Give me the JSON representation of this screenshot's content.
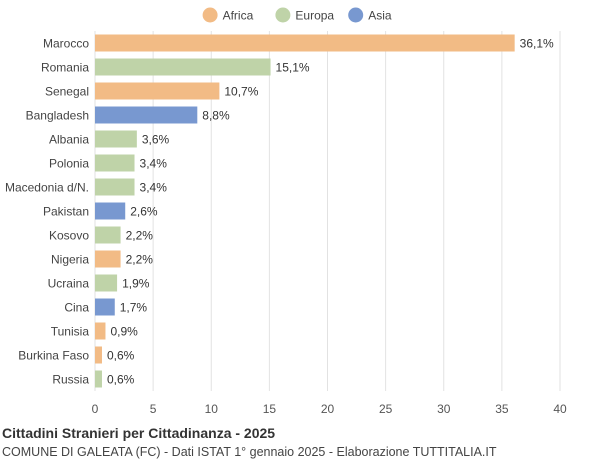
{
  "colors": {
    "Africa": "#f2bb85",
    "Europa": "#bfd3a8",
    "Asia": "#7898d0"
  },
  "legend": {
    "placement": "top-center",
    "items": [
      "Africa",
      "Europa",
      "Asia"
    ]
  },
  "chart_data": {
    "type": "bar",
    "orientation": "horizontal",
    "categories": [
      "Marocco",
      "Romania",
      "Senegal",
      "Bangladesh",
      "Albania",
      "Polonia",
      "Macedonia d/N.",
      "Pakistan",
      "Kosovo",
      "Nigeria",
      "Ucraina",
      "Cina",
      "Tunisia",
      "Burkina Faso",
      "Russia"
    ],
    "values": [
      36.1,
      15.1,
      10.7,
      8.8,
      3.6,
      3.4,
      3.4,
      2.6,
      2.2,
      2.2,
      1.9,
      1.7,
      0.9,
      0.6,
      0.6
    ],
    "value_labels": [
      "36,1%",
      "15,1%",
      "10,7%",
      "8,8%",
      "3,6%",
      "3,4%",
      "3,4%",
      "2,6%",
      "2,2%",
      "2,2%",
      "1,9%",
      "1,7%",
      "0,9%",
      "0,6%",
      "0,6%"
    ],
    "continent": [
      "Africa",
      "Europa",
      "Africa",
      "Asia",
      "Europa",
      "Europa",
      "Europa",
      "Asia",
      "Europa",
      "Africa",
      "Europa",
      "Asia",
      "Africa",
      "Africa",
      "Europa"
    ],
    "xlim": [
      0,
      40
    ],
    "xticks": [
      0,
      5,
      10,
      15,
      20,
      25,
      30,
      35,
      40
    ],
    "grid": true,
    "title": "Cittadini Stranieri per Cittadinanza - 2025",
    "subtitle": "COMUNE DI GALEATA (FC) - Dati ISTAT 1° gennaio 2025 - Elaborazione TUTTITALIA.IT"
  }
}
